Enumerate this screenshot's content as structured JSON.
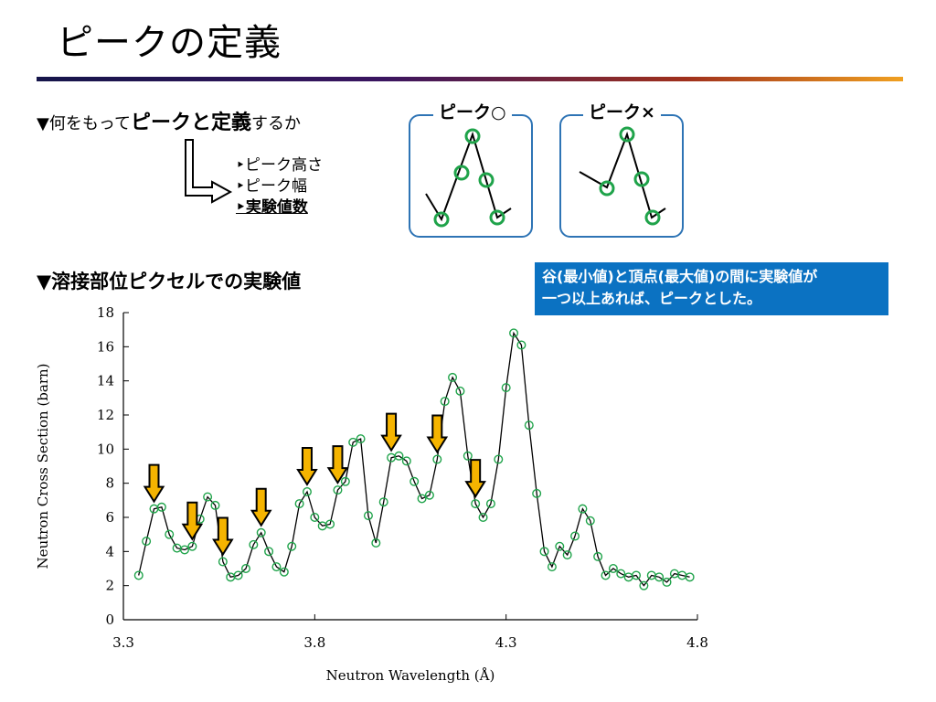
{
  "slide": {
    "title": "ピークの定義",
    "question_prefix": "▼何をもって",
    "question_emphasis": "ピークと定義",
    "question_suffix": "するか",
    "options": [
      "‣ピーク高さ",
      "‣ピーク幅",
      "‣実験値数"
    ],
    "panel_ok_label": "ピーク○",
    "panel_ng_label": "ピーク×",
    "section_heading": "▼溶接部位ピクセルでの実験値",
    "note": [
      "谷(最小値)と頂点(最大値)の間に実験値が",
      "一つ以上あれば、ピークとした。"
    ]
  },
  "colors": {
    "marker": "#1fa34a",
    "arrow": "#f5b400",
    "note_bg": "#0b72c2",
    "panel_border": "#2e74b5"
  },
  "chart_data": {
    "type": "line",
    "xlabel": "Neutron Wavelength (Å)",
    "ylabel": "Neutron Cross Section (barn)",
    "xlim": [
      3.3,
      4.8
    ],
    "ylim": [
      0,
      18
    ],
    "xticks": [
      "3.3",
      "3.8",
      "4.3",
      "4.8"
    ],
    "yticks": [
      "0",
      "2",
      "4",
      "6",
      "8",
      "10",
      "12",
      "14",
      "16",
      "18"
    ],
    "series": [
      {
        "x": [
          3.34,
          3.36,
          3.38,
          3.4,
          3.42,
          3.44,
          3.46,
          3.48,
          3.5,
          3.52,
          3.54,
          3.56,
          3.58,
          3.6,
          3.62,
          3.64,
          3.66,
          3.68,
          3.7,
          3.72,
          3.74,
          3.76,
          3.78,
          3.8,
          3.82,
          3.84,
          3.86,
          3.88,
          3.9,
          3.92,
          3.94,
          3.96,
          3.98,
          4.0,
          4.02,
          4.04,
          4.06,
          4.08,
          4.1,
          4.12,
          4.14,
          4.16,
          4.18,
          4.2,
          4.22,
          4.24,
          4.26,
          4.28,
          4.3,
          4.32,
          4.34,
          4.36,
          4.38,
          4.4,
          4.42,
          4.44,
          4.46,
          4.48,
          4.5,
          4.52,
          4.54,
          4.56,
          4.58,
          4.6,
          4.62,
          4.64,
          4.66,
          4.68,
          4.7,
          4.72,
          4.74,
          4.76,
          4.78
        ],
        "y": [
          2.6,
          4.6,
          6.5,
          6.6,
          5.0,
          4.2,
          4.1,
          4.3,
          5.9,
          7.2,
          6.7,
          3.4,
          2.5,
          2.6,
          3.0,
          4.4,
          5.1,
          4.0,
          3.1,
          2.8,
          4.3,
          6.8,
          7.5,
          6.0,
          5.5,
          5.6,
          7.6,
          8.1,
          10.4,
          10.6,
          6.1,
          4.5,
          6.9,
          9.5,
          9.6,
          9.3,
          8.1,
          7.1,
          7.3,
          9.4,
          12.8,
          14.2,
          13.4,
          9.6,
          6.8,
          6.0,
          6.8,
          9.4,
          13.6,
          16.8,
          16.1,
          11.4,
          7.4,
          4.0,
          3.1,
          4.3,
          3.8,
          4.9,
          6.5,
          5.8,
          3.7,
          2.6,
          3.0,
          2.7,
          2.5,
          2.6,
          2.0,
          2.6,
          2.5,
          2.2,
          2.7,
          2.6,
          2.5
        ]
      }
    ],
    "peaks": [
      3.38,
      3.48,
      3.56,
      3.66,
      3.78,
      3.86,
      4.0,
      4.12,
      4.22
    ]
  }
}
